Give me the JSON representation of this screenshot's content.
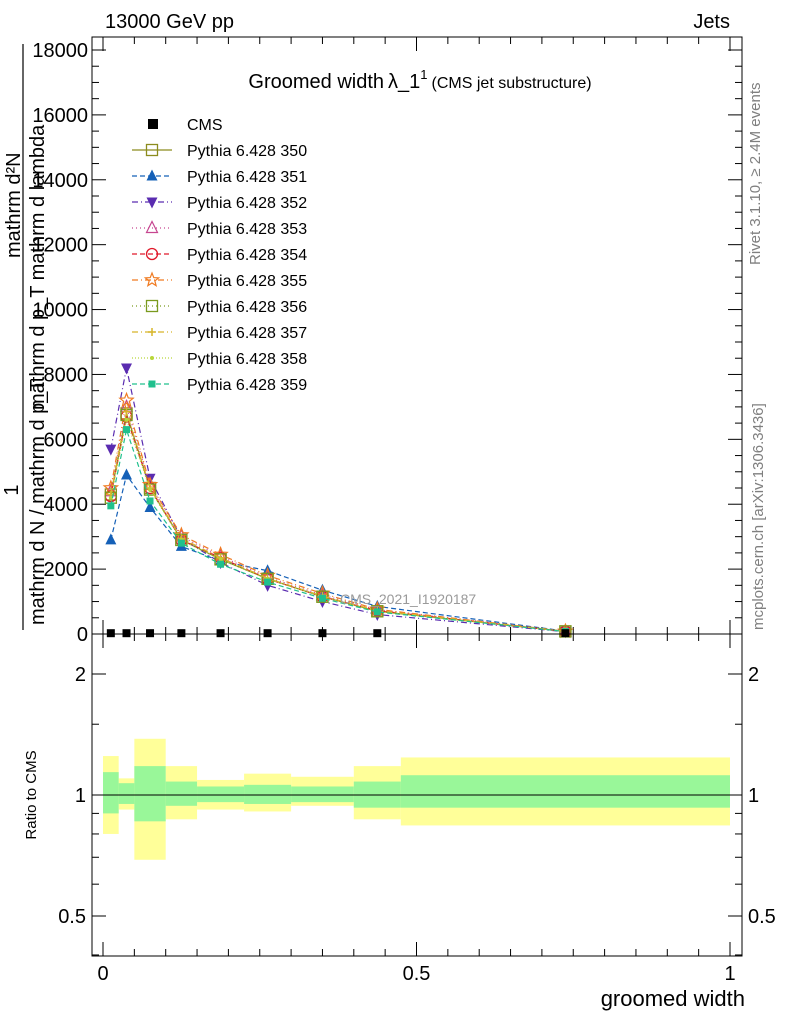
{
  "header": {
    "left": "13000 GeV pp",
    "right": "Jets"
  },
  "side": {
    "rivet": "Rivet 3.1.10, ≥ 2.4M events",
    "mcplots": "mcplots.cern.ch [arXiv:1306.3436]"
  },
  "watermark": "CMS_2021_I1920187",
  "chart_data": {
    "type": "line",
    "title": {
      "main": "Groomed width",
      "symbol": "λ_1",
      "sup": "1",
      "paren": "(CMS jet substructure)"
    },
    "ylabel_lines": [
      "1",
      "mathrm d N / mathrm d p_T",
      "mathrm d²N",
      "mathrm d p_T mathrm d lambda"
    ],
    "xlabel": "groomed width",
    "ratio_ylabel": "Ratio to CMS",
    "xlim": [
      -0.02,
      1.02
    ],
    "ylim": [
      0,
      18000
    ],
    "ratio_ylim": [
      0.3,
      2.5
    ],
    "x_ticks": [
      0,
      0.5,
      1
    ],
    "x_tick_labels": [
      "0",
      "0.5",
      "1"
    ],
    "y_ticks": [
      0,
      2000,
      4000,
      6000,
      8000,
      10000,
      12000,
      14000,
      16000,
      18000
    ],
    "y_tick_labels": [
      "0",
      "2000",
      "4000",
      "6000",
      "8000",
      "10000",
      "12000",
      "14000",
      "16000",
      "18000"
    ],
    "ratio_ticks": [
      0.5,
      1,
      2
    ],
    "ratio_tick_labels": [
      "0.5",
      "1",
      "2"
    ],
    "bin_edges": [
      0,
      0.025,
      0.05,
      0.1,
      0.15,
      0.225,
      0.3,
      0.4,
      0.475,
      1.0
    ],
    "x": [
      0.0125,
      0.0375,
      0.075,
      0.125,
      0.1875,
      0.2625,
      0.35,
      0.4375,
      0.7375
    ],
    "cms": {
      "name": "CMS",
      "values": [
        25,
        25,
        25,
        25,
        25,
        25,
        25,
        25,
        25
      ]
    },
    "series": [
      {
        "name": "Pythia 6.428 350",
        "color": "#8c8c1e",
        "dash": "",
        "marker": "square-open",
        "values": [
          4300,
          6800,
          4500,
          2900,
          2300,
          1700,
          1150,
          700,
          80
        ]
      },
      {
        "name": "Pythia 6.428 351",
        "color": "#1560b7",
        "dash": "5,3",
        "marker": "triangle-up",
        "values": [
          2900,
          4900,
          3900,
          2700,
          2250,
          1950,
          1350,
          850,
          90
        ]
      },
      {
        "name": "Pythia 6.428 352",
        "color": "#5a2cb0",
        "dash": "6,3,1,3",
        "marker": "triangle-down",
        "values": [
          5700,
          8200,
          4800,
          2950,
          2200,
          1500,
          1000,
          600,
          70
        ]
      },
      {
        "name": "Pythia 6.428 353",
        "color": "#c64690",
        "dash": "1,3",
        "marker": "triangle-open",
        "values": [
          4400,
          7000,
          4600,
          3000,
          2400,
          1750,
          1200,
          750,
          85
        ]
      },
      {
        "name": "Pythia 6.428 354",
        "color": "#e0192a",
        "dash": "5,3",
        "marker": "circle-open",
        "values": [
          4250,
          6700,
          4500,
          2900,
          2350,
          1700,
          1150,
          720,
          80
        ]
      },
      {
        "name": "Pythia 6.428 355",
        "color": "#f07b22",
        "dash": "6,3,1,3",
        "marker": "star-open",
        "values": [
          4500,
          7200,
          4600,
          3050,
          2450,
          1800,
          1250,
          760,
          85
        ]
      },
      {
        "name": "Pythia 6.428 356",
        "color": "#7a9a1e",
        "dash": "1,3",
        "marker": "square-open",
        "values": [
          4200,
          6750,
          4450,
          2900,
          2300,
          1700,
          1150,
          700,
          80
        ]
      },
      {
        "name": "Pythia 6.428 357",
        "color": "#d7b52a",
        "dash": "6,3,1,3",
        "marker": "cross",
        "values": [
          4300,
          6850,
          4500,
          2950,
          2350,
          1720,
          1170,
          720,
          80
        ]
      },
      {
        "name": "Pythia 6.428 358",
        "color": "#b8d63a",
        "dash": "1,2",
        "marker": "dot",
        "values": [
          4200,
          6600,
          4450,
          2900,
          2300,
          1700,
          1150,
          700,
          80
        ]
      },
      {
        "name": "Pythia 6.428 359",
        "color": "#20c08d",
        "dash": "5,3",
        "marker": "square-filled",
        "values": [
          3950,
          6300,
          4100,
          2800,
          2150,
          1600,
          1100,
          680,
          75
        ]
      }
    ],
    "ratio_bands": {
      "stat_lo": [
        0.9,
        0.95,
        0.86,
        0.94,
        0.96,
        0.95,
        0.96,
        0.93,
        0.93
      ],
      "stat_hi": [
        1.14,
        1.07,
        1.18,
        1.08,
        1.05,
        1.06,
        1.05,
        1.08,
        1.12
      ],
      "tot_lo": [
        0.8,
        0.92,
        0.69,
        0.87,
        0.92,
        0.91,
        0.94,
        0.87,
        0.84
      ],
      "tot_hi": [
        1.25,
        1.1,
        1.38,
        1.18,
        1.09,
        1.13,
        1.11,
        1.18,
        1.24
      ]
    }
  }
}
